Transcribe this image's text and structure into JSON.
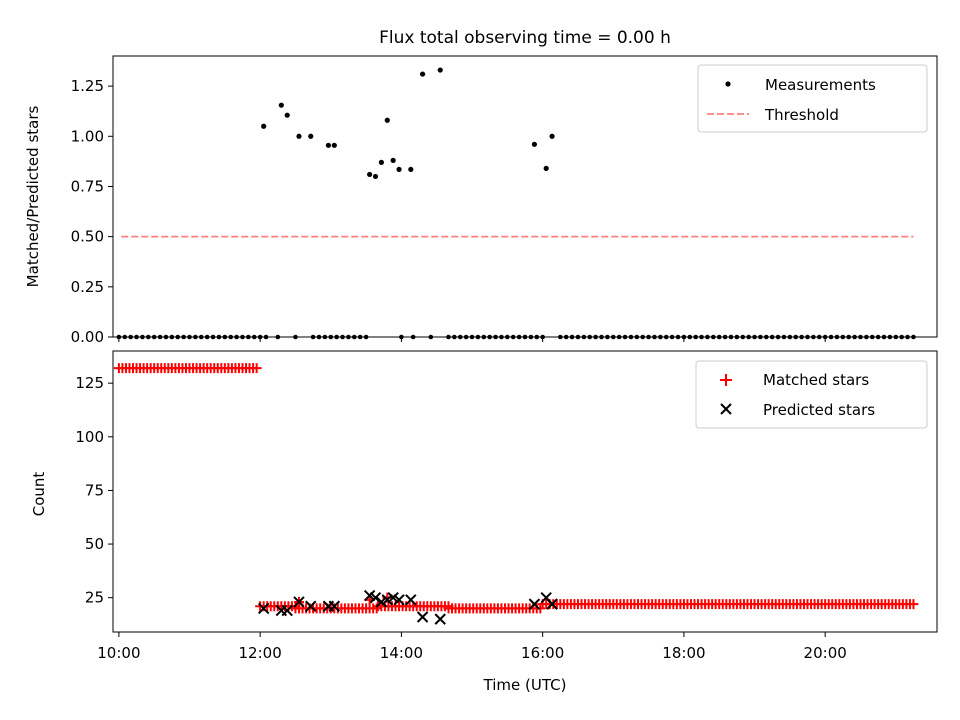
{
  "figure": {
    "title": "Flux total observing time = 0.00 h"
  },
  "chart_data": [
    {
      "type": "scatter",
      "ylabel": "Matched/Predicted stars",
      "xlim": [
        "09:55",
        "21:35"
      ],
      "ylim": [
        0,
        1.4
      ],
      "x_ticks": [
        "10:00",
        "12:00",
        "14:00",
        "16:00",
        "18:00",
        "20:00"
      ],
      "y_ticks": [
        "0.00",
        "0.25",
        "0.50",
        "0.75",
        "1.00",
        "1.25"
      ],
      "legend": {
        "position": "top-right",
        "entries": [
          "Measurements",
          "Threshold"
        ]
      },
      "colors": {
        "measurements": "#000000",
        "threshold": "#ff7f7f"
      },
      "threshold": {
        "name": "Threshold",
        "y": 0.5,
        "x_start": "10:02",
        "x_end": "21:15"
      },
      "measurements": {
        "name": "Measurements",
        "zero_runs": [
          {
            "from": "10:00",
            "to": "12:00",
            "step_min": 5
          },
          {
            "from": "12:55",
            "to": "13:30",
            "step_min": 5
          },
          {
            "from": "14:40",
            "to": "15:55",
            "step_min": 5
          },
          {
            "from": "16:15",
            "to": "21:15",
            "step_min": 5
          }
        ],
        "zero_points": [
          "12:05",
          "12:15",
          "12:30",
          "12:45",
          "12:50",
          "14:00",
          "14:10",
          "14:25",
          "16:00"
        ],
        "points": [
          {
            "x": "12:03",
            "y": 1.05
          },
          {
            "x": "12:18",
            "y": 1.155
          },
          {
            "x": "12:23",
            "y": 1.105
          },
          {
            "x": "12:33",
            "y": 1.0
          },
          {
            "x": "12:43",
            "y": 1.0
          },
          {
            "x": "12:58",
            "y": 0.955
          },
          {
            "x": "13:03",
            "y": 0.955
          },
          {
            "x": "13:33",
            "y": 0.81
          },
          {
            "x": "13:38",
            "y": 0.8
          },
          {
            "x": "13:43",
            "y": 0.87
          },
          {
            "x": "13:48",
            "y": 1.08
          },
          {
            "x": "13:53",
            "y": 0.88
          },
          {
            "x": "13:58",
            "y": 0.835
          },
          {
            "x": "14:08",
            "y": 0.835
          },
          {
            "x": "14:18",
            "y": 1.31
          },
          {
            "x": "14:33",
            "y": 1.33
          },
          {
            "x": "15:53",
            "y": 0.96
          },
          {
            "x": "16:03",
            "y": 0.84
          },
          {
            "x": "16:08",
            "y": 1.0
          }
        ]
      }
    },
    {
      "type": "scatter",
      "xlabel": "Time (UTC)",
      "ylabel": "Count",
      "xlim": [
        "09:55",
        "21:35"
      ],
      "ylim": [
        9,
        140
      ],
      "x_ticks": [
        "10:00",
        "12:00",
        "14:00",
        "16:00",
        "18:00",
        "20:00"
      ],
      "y_ticks": [
        "25",
        "50",
        "75",
        "100",
        "125"
      ],
      "legend": {
        "position": "top-right",
        "entries": [
          "Matched stars",
          "Predicted stars"
        ]
      },
      "colors": {
        "matched": "#ff0000",
        "predicted": "#000000"
      },
      "matched": {
        "name": "Matched stars",
        "runs": [
          {
            "from": "10:00",
            "to": "11:58",
            "step_min": 3,
            "y": 132
          },
          {
            "from": "12:00",
            "to": "12:30",
            "step_min": 3,
            "y": 21
          },
          {
            "from": "12:30",
            "to": "13:40",
            "step_min": 3,
            "y": 20
          },
          {
            "from": "13:40",
            "to": "14:40",
            "step_min": 3,
            "y": 21
          },
          {
            "from": "14:40",
            "to": "16:00",
            "step_min": 3,
            "y": 20
          },
          {
            "from": "16:00",
            "to": "21:15",
            "step_min": 3,
            "y": 22
          }
        ],
        "points": [
          {
            "x": "12:33",
            "y": 23
          },
          {
            "x": "13:33",
            "y": 24
          },
          {
            "x": "13:48",
            "y": 25
          }
        ]
      },
      "predicted": {
        "name": "Predicted stars",
        "points": [
          {
            "x": "12:03",
            "y": 20
          },
          {
            "x": "12:18",
            "y": 19
          },
          {
            "x": "12:23",
            "y": 19
          },
          {
            "x": "12:33",
            "y": 23
          },
          {
            "x": "12:43",
            "y": 21
          },
          {
            "x": "12:58",
            "y": 21
          },
          {
            "x": "13:03",
            "y": 21
          },
          {
            "x": "13:33",
            "y": 26
          },
          {
            "x": "13:38",
            "y": 25
          },
          {
            "x": "13:43",
            "y": 23
          },
          {
            "x": "13:48",
            "y": 24
          },
          {
            "x": "13:53",
            "y": 25
          },
          {
            "x": "13:58",
            "y": 24
          },
          {
            "x": "14:08",
            "y": 24
          },
          {
            "x": "14:18",
            "y": 16
          },
          {
            "x": "14:33",
            "y": 15
          },
          {
            "x": "15:53",
            "y": 22
          },
          {
            "x": "16:03",
            "y": 25
          },
          {
            "x": "16:08",
            "y": 22
          }
        ]
      }
    }
  ]
}
